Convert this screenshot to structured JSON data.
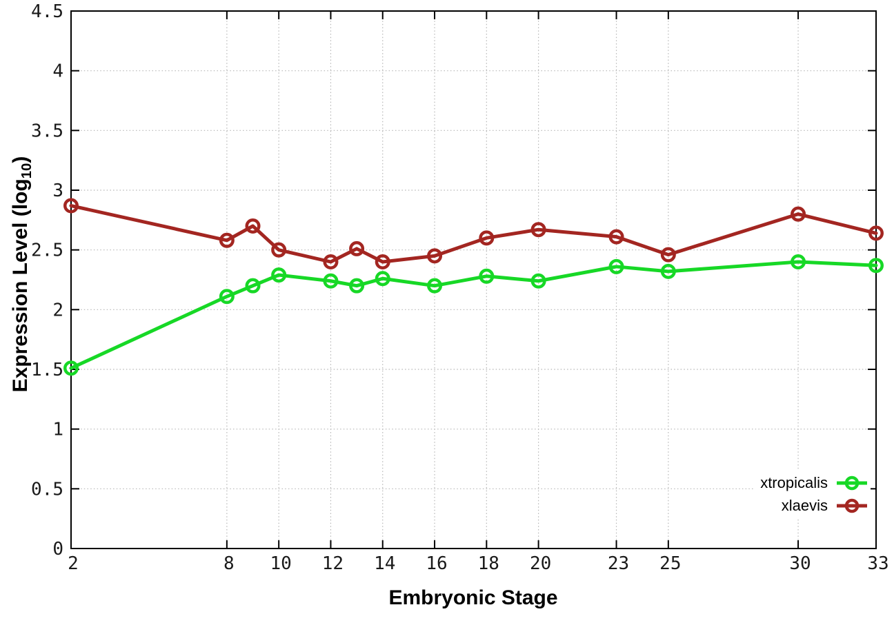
{
  "chart_data": {
    "type": "line",
    "title": "",
    "xlabel": "Embryonic Stage",
    "ylabel": "Expression Level (log10)",
    "ylabel_rich": {
      "prefix": "Expression Level (log",
      "sub": "10",
      "suffix": ")"
    },
    "x": [
      2,
      8,
      9,
      10,
      12,
      13,
      14,
      16,
      18,
      20,
      23,
      25,
      30,
      33
    ],
    "series": [
      {
        "name": "xtropicalis",
        "color": "#17d826",
        "marker": "open-circle",
        "values": [
          1.51,
          2.11,
          2.2,
          2.29,
          2.24,
          2.2,
          2.26,
          2.2,
          2.28,
          2.24,
          2.36,
          2.32,
          2.4,
          2.37
        ]
      },
      {
        "name": "xlaevis",
        "color": "#a32621",
        "marker": "open-circle",
        "values": [
          2.87,
          2.58,
          2.7,
          2.5,
          2.4,
          2.51,
          2.4,
          2.45,
          2.6,
          2.67,
          2.61,
          2.46,
          2.8,
          2.64
        ]
      }
    ],
    "xlim": [
      2,
      33
    ],
    "ylim": [
      0,
      4.5
    ],
    "x_ticks": [
      2,
      8,
      10,
      12,
      14,
      16,
      18,
      20,
      23,
      25,
      30,
      33
    ],
    "x_tick_labels": [
      "2",
      "8",
      "10",
      "12",
      "14",
      "16",
      "18",
      "20",
      "23",
      "25",
      "30",
      "33"
    ],
    "y_ticks": [
      0,
      0.5,
      1,
      1.5,
      2,
      2.5,
      3,
      3.5,
      4,
      4.5
    ],
    "y_tick_labels": [
      "0",
      "0.5",
      "1",
      "1.5",
      "2",
      "2.5",
      "3",
      "3.5",
      "4",
      "4.5"
    ],
    "grid": true,
    "grid_color": "#b5b5b5",
    "border_color": "#000000",
    "legend_position": "bottom-right-inside"
  }
}
